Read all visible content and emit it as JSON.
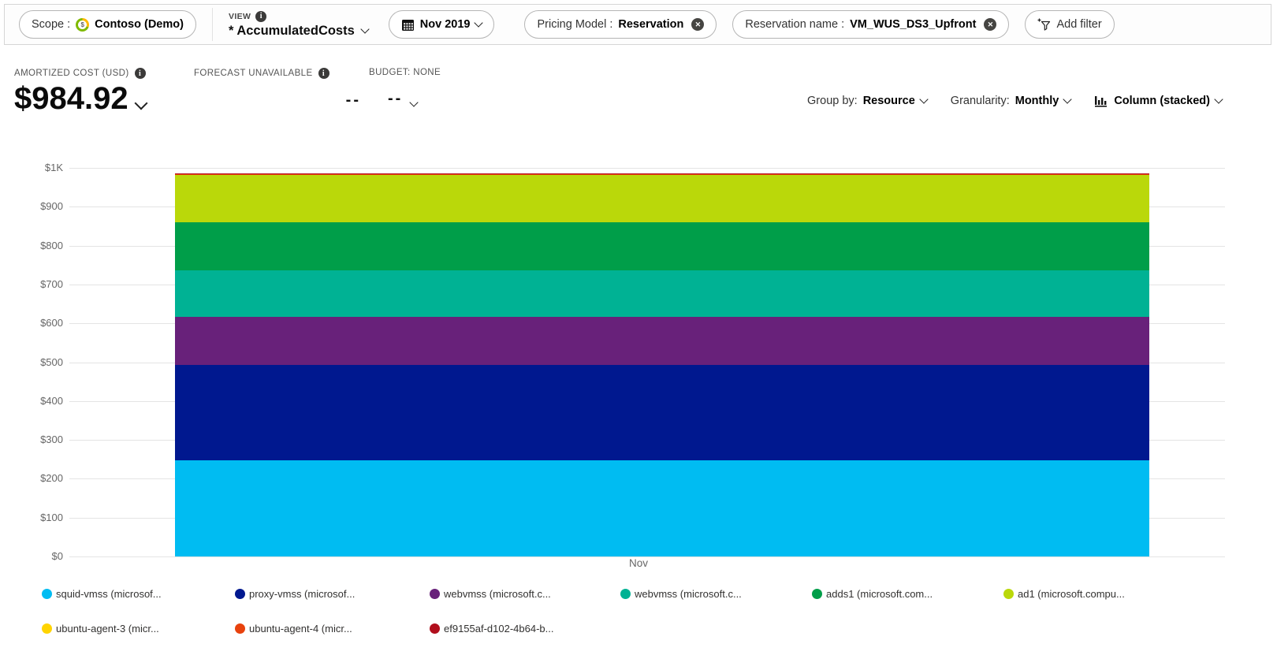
{
  "icons": {
    "info_glyph": "i",
    "close_glyph": "✕",
    "scope_glyph": "$"
  },
  "filter_bar": {
    "scope_label": "Scope :",
    "scope_value": "Contoso (Demo)",
    "view_label": "VIEW",
    "view_value": "* AccumulatedCosts",
    "date_value": "Nov 2019",
    "pricing_label": "Pricing Model :",
    "pricing_value": "Reservation",
    "reservation_label": "Reservation name :",
    "reservation_value": "VM_WUS_DS3_Upfront",
    "add_filter_label": "Add filter"
  },
  "kpis": {
    "amortized_label": "AMORTIZED COST (USD)",
    "amortized_value": "$984.92",
    "forecast_label": "FORECAST UNAVAILABLE",
    "forecast_value": "--",
    "budget_label": "BUDGET: NONE",
    "budget_value": "--"
  },
  "controls": {
    "group_by_label": "Group by:",
    "group_by_value": "Resource",
    "granularity_label": "Granularity:",
    "granularity_value": "Monthly",
    "chart_type_label": "Column (stacked)"
  },
  "chart_data": {
    "type": "bar",
    "stacked": true,
    "title": "",
    "xlabel": "",
    "ylabel": "",
    "x": [
      "Nov"
    ],
    "ylim": [
      0,
      1000
    ],
    "ytick_labels": [
      "$0",
      "$100",
      "$200",
      "$300",
      "$400",
      "$500",
      "$600",
      "$700",
      "$800",
      "$900",
      "$1K"
    ],
    "grid": true,
    "legend_position": "bottom",
    "total": "$984.92",
    "series": [
      {
        "name": "squid-vmss (microsof...",
        "color": "#00bcf2",
        "values": [
          248
        ]
      },
      {
        "name": "proxy-vmss (microsof...",
        "color": "#00188f",
        "values": [
          245
        ]
      },
      {
        "name": "webvmss (microsoft.c...",
        "color": "#68217a",
        "values": [
          123
        ]
      },
      {
        "name": "webvmss (microsoft.c...",
        "color": "#00b294",
        "values": [
          121
        ]
      },
      {
        "name": "adds1 (microsoft.com...",
        "color": "#009e49",
        "values": [
          123
        ]
      },
      {
        "name": "ad1 (microsoft.compu...",
        "color": "#bad80a",
        "values": [
          122
        ]
      },
      {
        "name": "ubuntu-agent-3 (micr...",
        "color": "#ffd400",
        "values": [
          1.5
        ]
      },
      {
        "name": "ubuntu-agent-4 (micr...",
        "color": "#e8420d",
        "values": [
          1
        ]
      },
      {
        "name": "ef9155af-d102-4b64-b...",
        "color": "#b10e1c",
        "values": [
          0.42
        ]
      }
    ]
  }
}
